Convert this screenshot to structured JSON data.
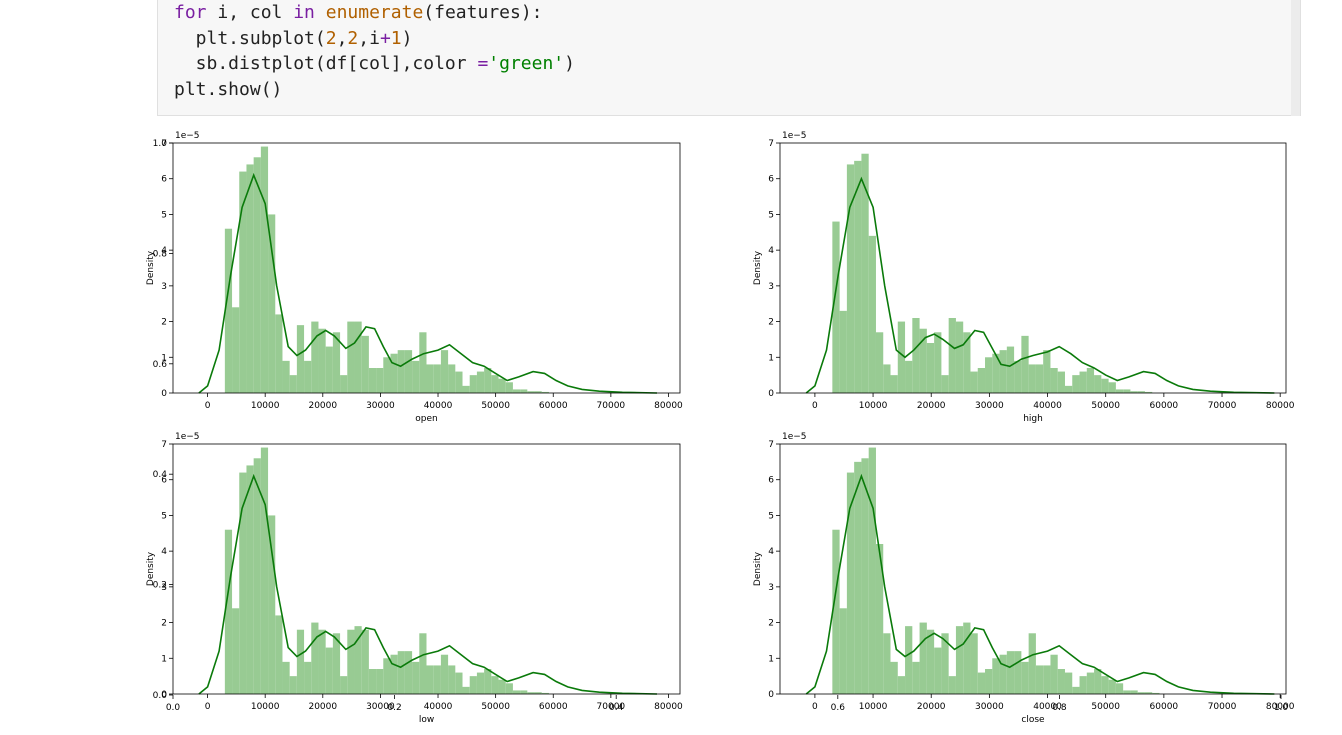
{
  "code": {
    "lines": [
      [
        [
          "kw",
          "for"
        ],
        [
          "t",
          " i, col "
        ],
        [
          "kw",
          "in"
        ],
        [
          "t",
          " "
        ],
        [
          "bi",
          "enumerate"
        ],
        [
          "t",
          "(features):"
        ]
      ],
      [
        [
          "t",
          "  plt.subplot("
        ],
        [
          "num",
          "2"
        ],
        [
          "t",
          ","
        ],
        [
          "num",
          "2"
        ],
        [
          "t",
          ",i"
        ],
        [
          "op",
          "+"
        ],
        [
          "num",
          "1"
        ],
        [
          "t",
          ")"
        ]
      ],
      [
        [
          "t",
          "  sb.distplot(df[col],color "
        ],
        [
          "op",
          "="
        ],
        [
          "str",
          "'green'"
        ],
        [
          "t",
          ")"
        ]
      ],
      [
        [
          "t",
          "plt.show()"
        ]
      ]
    ]
  },
  "figure": {
    "outer_axis_ticks": [
      "0.0",
      "0.2",
      "0.4",
      "0.6",
      "0.8",
      "1.0"
    ],
    "colors": {
      "hist": "#98cb93",
      "kde": "#0a7a0a",
      "axis": "#000000"
    }
  },
  "chart_data": [
    {
      "type": "bar",
      "title": "",
      "xlabel": "open",
      "ylabel": "Density",
      "y_scale_label": "1e−5",
      "xlim": [
        -6000,
        82000
      ],
      "ylim": [
        0,
        7
      ],
      "x_ticks": [
        "0",
        "10000",
        "20000",
        "30000",
        "40000",
        "50000",
        "60000",
        "70000",
        "80000"
      ],
      "y_ticks": [
        "0",
        "1",
        "2",
        "3",
        "4",
        "5",
        "6",
        "7"
      ],
      "bin_start": 3000,
      "bin_width": 1250,
      "hist": [
        4.6,
        2.4,
        6.2,
        6.4,
        6.6,
        6.9,
        5.0,
        2.2,
        0.9,
        0.5,
        1.9,
        0.9,
        2.0,
        1.8,
        1.3,
        1.7,
        0.5,
        2.0,
        2.0,
        1.6,
        0.7,
        0.7,
        1.0,
        1.1,
        1.2,
        1.2,
        0.9,
        1.7,
        0.8,
        0.8,
        1.2,
        0.8,
        0.6,
        0.2,
        0.5,
        0.6,
        0.7,
        0.5,
        0.4,
        0.3,
        0.1,
        0.1,
        0.05,
        0.05,
        0.03
      ],
      "kde": [
        [
          -1500,
          0
        ],
        [
          0,
          0.2
        ],
        [
          2000,
          1.2
        ],
        [
          4000,
          3.3
        ],
        [
          6000,
          5.2
        ],
        [
          8000,
          6.1
        ],
        [
          10000,
          5.3
        ],
        [
          12000,
          3.0
        ],
        [
          14000,
          1.3
        ],
        [
          15500,
          1.05
        ],
        [
          17000,
          1.2
        ],
        [
          19000,
          1.6
        ],
        [
          20500,
          1.75
        ],
        [
          22000,
          1.6
        ],
        [
          24000,
          1.25
        ],
        [
          25500,
          1.4
        ],
        [
          27500,
          1.85
        ],
        [
          29000,
          1.8
        ],
        [
          30500,
          1.3
        ],
        [
          32000,
          0.85
        ],
        [
          33500,
          0.75
        ],
        [
          35500,
          0.95
        ],
        [
          37500,
          1.1
        ],
        [
          40000,
          1.2
        ],
        [
          42000,
          1.35
        ],
        [
          44000,
          1.1
        ],
        [
          46000,
          0.85
        ],
        [
          48000,
          0.75
        ],
        [
          50000,
          0.55
        ],
        [
          52000,
          0.35
        ],
        [
          54000,
          0.45
        ],
        [
          56500,
          0.6
        ],
        [
          58500,
          0.55
        ],
        [
          60500,
          0.35
        ],
        [
          62500,
          0.2
        ],
        [
          65000,
          0.1
        ],
        [
          68000,
          0.05
        ],
        [
          72000,
          0.02
        ],
        [
          78000,
          0
        ]
      ]
    },
    {
      "type": "bar",
      "title": "",
      "xlabel": "high",
      "ylabel": "Density",
      "y_scale_label": "1e−5",
      "xlim": [
        -6000,
        81000
      ],
      "ylim": [
        0,
        7
      ],
      "x_ticks": [
        "0",
        "10000",
        "20000",
        "30000",
        "40000",
        "50000",
        "60000",
        "70000",
        "80000"
      ],
      "y_ticks": [
        "0",
        "1",
        "2",
        "3",
        "4",
        "5",
        "6",
        "7"
      ],
      "bin_start": 3000,
      "bin_width": 1250,
      "hist": [
        4.8,
        2.3,
        6.4,
        6.5,
        6.7,
        4.4,
        1.7,
        0.8,
        0.5,
        2.0,
        0.9,
        2.1,
        1.8,
        1.4,
        1.7,
        0.5,
        2.1,
        2.0,
        1.7,
        0.6,
        0.7,
        1.0,
        1.1,
        1.2,
        1.3,
        0.9,
        1.6,
        0.8,
        0.8,
        1.2,
        0.7,
        0.6,
        0.2,
        0.5,
        0.6,
        0.7,
        0.5,
        0.4,
        0.3,
        0.1,
        0.1,
        0.05,
        0.05,
        0.03
      ],
      "kde": [
        [
          -1500,
          0
        ],
        [
          0,
          0.2
        ],
        [
          2000,
          1.2
        ],
        [
          4000,
          3.3
        ],
        [
          6000,
          5.2
        ],
        [
          8000,
          6.0
        ],
        [
          10000,
          5.2
        ],
        [
          12000,
          3.0
        ],
        [
          14000,
          1.2
        ],
        [
          15500,
          1.0
        ],
        [
          17000,
          1.2
        ],
        [
          19000,
          1.55
        ],
        [
          20500,
          1.65
        ],
        [
          22000,
          1.5
        ],
        [
          24000,
          1.25
        ],
        [
          25500,
          1.35
        ],
        [
          27500,
          1.75
        ],
        [
          29000,
          1.7
        ],
        [
          30500,
          1.25
        ],
        [
          32000,
          0.8
        ],
        [
          33500,
          0.75
        ],
        [
          35500,
          0.95
        ],
        [
          37500,
          1.05
        ],
        [
          40000,
          1.15
        ],
        [
          42000,
          1.3
        ],
        [
          44000,
          1.1
        ],
        [
          46000,
          0.85
        ],
        [
          48000,
          0.7
        ],
        [
          50000,
          0.5
        ],
        [
          52000,
          0.35
        ],
        [
          54000,
          0.45
        ],
        [
          56500,
          0.6
        ],
        [
          58500,
          0.55
        ],
        [
          60500,
          0.35
        ],
        [
          62500,
          0.2
        ],
        [
          65000,
          0.1
        ],
        [
          68000,
          0.05
        ],
        [
          72000,
          0.02
        ],
        [
          79000,
          0
        ]
      ]
    },
    {
      "type": "bar",
      "title": "",
      "xlabel": "low",
      "ylabel": "Density",
      "y_scale_label": "1e−5",
      "xlim": [
        -6000,
        82000
      ],
      "ylim": [
        0,
        7
      ],
      "x_ticks": [
        "0",
        "10000",
        "20000",
        "30000",
        "40000",
        "50000",
        "60000",
        "70000",
        "80000"
      ],
      "y_ticks": [
        "0",
        "1",
        "2",
        "3",
        "4",
        "5",
        "6",
        "7"
      ],
      "bin_start": 3000,
      "bin_width": 1250,
      "hist": [
        4.6,
        2.4,
        6.2,
        6.4,
        6.6,
        6.9,
        5.0,
        2.2,
        0.9,
        0.5,
        1.8,
        0.9,
        2.0,
        1.8,
        1.3,
        1.7,
        0.5,
        1.8,
        1.9,
        1.8,
        0.7,
        0.7,
        1.0,
        1.1,
        1.2,
        1.2,
        0.9,
        1.7,
        0.8,
        0.8,
        1.1,
        0.8,
        0.6,
        0.2,
        0.5,
        0.6,
        0.7,
        0.5,
        0.4,
        0.3,
        0.1,
        0.1,
        0.05,
        0.05,
        0.03
      ],
      "kde": [
        [
          -1500,
          0
        ],
        [
          0,
          0.2
        ],
        [
          2000,
          1.2
        ],
        [
          4000,
          3.3
        ],
        [
          6000,
          5.2
        ],
        [
          8000,
          6.1
        ],
        [
          10000,
          5.3
        ],
        [
          12000,
          3.0
        ],
        [
          14000,
          1.3
        ],
        [
          15500,
          1.05
        ],
        [
          17000,
          1.2
        ],
        [
          19000,
          1.6
        ],
        [
          20500,
          1.75
        ],
        [
          22000,
          1.6
        ],
        [
          24000,
          1.25
        ],
        [
          25500,
          1.4
        ],
        [
          27500,
          1.85
        ],
        [
          29000,
          1.8
        ],
        [
          30500,
          1.3
        ],
        [
          32000,
          0.85
        ],
        [
          33500,
          0.75
        ],
        [
          35500,
          0.95
        ],
        [
          37500,
          1.1
        ],
        [
          40000,
          1.2
        ],
        [
          42000,
          1.35
        ],
        [
          44000,
          1.1
        ],
        [
          46000,
          0.85
        ],
        [
          48000,
          0.75
        ],
        [
          50000,
          0.55
        ],
        [
          52000,
          0.35
        ],
        [
          54000,
          0.45
        ],
        [
          56500,
          0.6
        ],
        [
          58500,
          0.55
        ],
        [
          60500,
          0.35
        ],
        [
          62500,
          0.2
        ],
        [
          65000,
          0.1
        ],
        [
          68000,
          0.05
        ],
        [
          72000,
          0.02
        ],
        [
          78000,
          0
        ]
      ]
    },
    {
      "type": "bar",
      "title": "",
      "xlabel": "close",
      "ylabel": "Density",
      "y_scale_label": "1e−5",
      "xlim": [
        -6000,
        81000
      ],
      "ylim": [
        0,
        7
      ],
      "x_ticks": [
        "0",
        "10000",
        "20000",
        "30000",
        "40000",
        "50000",
        "60000",
        "70000",
        "80000"
      ],
      "y_ticks": [
        "0",
        "1",
        "2",
        "3",
        "4",
        "5",
        "6",
        "7"
      ],
      "bin_start": 3000,
      "bin_width": 1250,
      "hist": [
        4.6,
        2.4,
        6.2,
        6.5,
        6.6,
        6.9,
        4.2,
        1.7,
        0.9,
        0.5,
        1.9,
        0.9,
        2.0,
        1.8,
        1.3,
        1.7,
        0.5,
        1.9,
        2.0,
        1.7,
        0.6,
        0.7,
        1.0,
        1.1,
        1.2,
        1.2,
        0.9,
        1.7,
        0.8,
        0.8,
        1.1,
        0.7,
        0.6,
        0.2,
        0.5,
        0.6,
        0.7,
        0.5,
        0.4,
        0.3,
        0.1,
        0.1,
        0.05,
        0.05,
        0.03
      ],
      "kde": [
        [
          -1500,
          0
        ],
        [
          0,
          0.2
        ],
        [
          2000,
          1.2
        ],
        [
          4000,
          3.3
        ],
        [
          6000,
          5.2
        ],
        [
          8000,
          6.1
        ],
        [
          10000,
          5.2
        ],
        [
          12000,
          3.0
        ],
        [
          14000,
          1.25
        ],
        [
          15500,
          1.05
        ],
        [
          17000,
          1.2
        ],
        [
          19000,
          1.55
        ],
        [
          20500,
          1.7
        ],
        [
          22000,
          1.55
        ],
        [
          24000,
          1.25
        ],
        [
          25500,
          1.4
        ],
        [
          27500,
          1.85
        ],
        [
          29000,
          1.8
        ],
        [
          30500,
          1.3
        ],
        [
          32000,
          0.85
        ],
        [
          33500,
          0.75
        ],
        [
          35500,
          0.95
        ],
        [
          37500,
          1.1
        ],
        [
          40000,
          1.2
        ],
        [
          42000,
          1.35
        ],
        [
          44000,
          1.1
        ],
        [
          46000,
          0.85
        ],
        [
          48000,
          0.75
        ],
        [
          50000,
          0.55
        ],
        [
          52000,
          0.35
        ],
        [
          54000,
          0.45
        ],
        [
          56500,
          0.6
        ],
        [
          58500,
          0.55
        ],
        [
          60500,
          0.35
        ],
        [
          62500,
          0.2
        ],
        [
          65000,
          0.1
        ],
        [
          68000,
          0.05
        ],
        [
          72000,
          0.02
        ],
        [
          79000,
          0
        ]
      ]
    }
  ]
}
